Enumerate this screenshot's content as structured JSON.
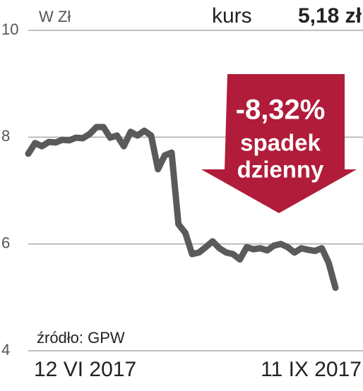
{
  "chart_data": {
    "type": "line",
    "unit_label": "W Zł",
    "price_label": "kurs",
    "price_value": "5,18 zł",
    "badge": {
      "change": "-8,32%",
      "line1": "spadek",
      "line2": "dzienny"
    },
    "source": "źródło: GPW",
    "categories": [
      "12 VI 2017",
      null,
      null,
      null,
      null,
      null,
      null,
      null,
      null,
      null,
      null,
      null,
      null,
      null,
      null,
      null,
      null,
      null,
      null,
      null,
      null,
      null,
      null,
      null,
      null,
      null,
      null,
      null,
      null,
      null,
      null,
      null,
      null,
      null,
      null,
      null,
      null,
      null,
      null,
      null,
      null,
      null,
      null,
      null,
      null,
      "11 IX 2017"
    ],
    "series": [
      {
        "color": "#5a5a5a",
        "values": [
          7.69,
          7.89,
          7.83,
          7.91,
          7.9,
          7.95,
          7.94,
          7.99,
          7.98,
          8.06,
          8.19,
          8.19,
          7.99,
          8.03,
          7.83,
          8.1,
          8.03,
          8.12,
          8.03,
          7.4,
          7.66,
          7.71,
          6.37,
          6.21,
          5.81,
          5.84,
          5.94,
          6.05,
          5.92,
          5.84,
          5.81,
          5.71,
          5.94,
          5.9,
          5.92,
          5.88,
          5.97,
          6.0,
          5.94,
          5.84,
          5.92,
          5.89,
          5.87,
          5.92,
          5.65,
          5.18
        ]
      }
    ],
    "ylim": [
      4,
      10
    ],
    "yticks": [
      4,
      6,
      8,
      10
    ],
    "grid": true
  }
}
